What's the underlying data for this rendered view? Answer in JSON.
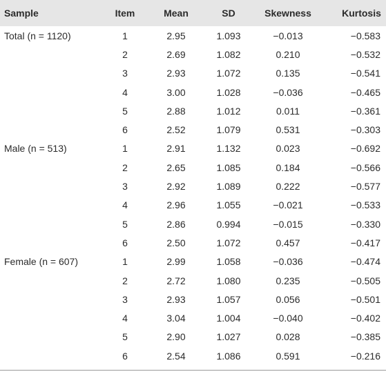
{
  "table": {
    "header": [
      "Sample",
      "Item",
      "Mean",
      "SD",
      "Skewness",
      "Kurtosis"
    ],
    "rows": [
      [
        "Total (n = 1120)",
        "1",
        "2.95",
        "1.093",
        "−0.013",
        "−0.583"
      ],
      [
        null,
        "2",
        "2.69",
        "1.082",
        "0.210",
        "−0.532"
      ],
      [
        null,
        "3",
        "2.93",
        "1.072",
        "0.135",
        "−0.541"
      ],
      [
        null,
        "4",
        "3.00",
        "1.028",
        "−0.036",
        "−0.465"
      ],
      [
        null,
        "5",
        "2.88",
        "1.012",
        "0.011",
        "−0.361"
      ],
      [
        null,
        "6",
        "2.52",
        "1.079",
        "0.531",
        "−0.303"
      ],
      [
        "Male (n = 513)",
        "1",
        "2.91",
        "1.132",
        "0.023",
        "−0.692"
      ],
      [
        null,
        "2",
        "2.65",
        "1.085",
        "0.184",
        "−0.566"
      ],
      [
        null,
        "3",
        "2.92",
        "1.089",
        "0.222",
        "−0.577"
      ],
      [
        null,
        "4",
        "2.96",
        "1.055",
        "−0.021",
        "−0.533"
      ],
      [
        null,
        "5",
        "2.86",
        "0.994",
        "−0.015",
        "−0.330"
      ],
      [
        null,
        "6",
        "2.50",
        "1.072",
        "0.457",
        "−0.417"
      ],
      [
        "Female (n = 607)",
        "1",
        "2.99",
        "1.058",
        "−0.036",
        "−0.474"
      ],
      [
        null,
        "2",
        "2.72",
        "1.080",
        "0.235",
        "−0.505"
      ],
      [
        null,
        "3",
        "2.93",
        "1.057",
        "0.056",
        "−0.501"
      ],
      [
        null,
        "4",
        "3.04",
        "1.004",
        "−0.040",
        "−0.402"
      ],
      [
        null,
        "5",
        "2.90",
        "1.027",
        "0.028",
        "−0.385"
      ],
      [
        null,
        "6",
        "2.54",
        "1.086",
        "0.591",
        "−0.216"
      ]
    ]
  }
}
